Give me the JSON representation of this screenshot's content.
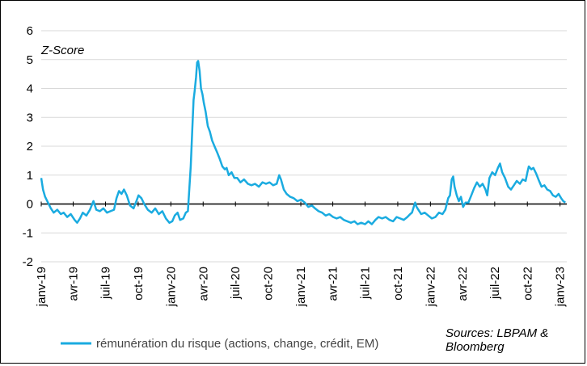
{
  "chart_data": {
    "type": "line",
    "ylabel": "Z-Score",
    "source_note": [
      "Sources: LBPAM &",
      "Bloomberg"
    ],
    "ylim": [
      -2,
      6
    ],
    "y_ticks": [
      "6",
      "5",
      "4",
      "3",
      "2",
      "1",
      "0",
      "-1",
      "-2"
    ],
    "x_ticks": [
      "janv-19",
      "avr-19",
      "juil-19",
      "oct-19",
      "janv-20",
      "avr-20",
      "juil-20",
      "oct-20",
      "janv-21",
      "avr-21",
      "juil-21",
      "oct-21",
      "janv-22",
      "avr-22",
      "juil-22",
      "oct-22",
      "janv-23"
    ],
    "grid": true,
    "series": [
      {
        "name": "rémunération du risque (actions, change, crédit, EM)",
        "color": "#1aabe0",
        "points": [
          [
            "2019-01-01",
            0.9
          ],
          [
            "2019-01-06",
            0.5
          ],
          [
            "2019-01-12",
            0.25
          ],
          [
            "2019-01-20",
            0.05
          ],
          [
            "2019-01-28",
            -0.15
          ],
          [
            "2019-02-05",
            -0.3
          ],
          [
            "2019-02-15",
            -0.2
          ],
          [
            "2019-02-25",
            -0.35
          ],
          [
            "2019-03-05",
            -0.3
          ],
          [
            "2019-03-15",
            -0.45
          ],
          [
            "2019-03-25",
            -0.35
          ],
          [
            "2019-04-05",
            -0.55
          ],
          [
            "2019-04-12",
            -0.65
          ],
          [
            "2019-04-20",
            -0.5
          ],
          [
            "2019-04-28",
            -0.3
          ],
          [
            "2019-05-08",
            -0.4
          ],
          [
            "2019-05-18",
            -0.2
          ],
          [
            "2019-05-28",
            0.1
          ],
          [
            "2019-06-05",
            -0.2
          ],
          [
            "2019-06-15",
            -0.25
          ],
          [
            "2019-06-25",
            -0.15
          ],
          [
            "2019-07-05",
            -0.3
          ],
          [
            "2019-07-15",
            -0.25
          ],
          [
            "2019-07-25",
            -0.2
          ],
          [
            "2019-08-01",
            0.2
          ],
          [
            "2019-08-08",
            0.45
          ],
          [
            "2019-08-15",
            0.35
          ],
          [
            "2019-08-22",
            0.5
          ],
          [
            "2019-08-30",
            0.3
          ],
          [
            "2019-09-08",
            -0.05
          ],
          [
            "2019-09-18",
            -0.15
          ],
          [
            "2019-09-26",
            0.1
          ],
          [
            "2019-10-02",
            0.3
          ],
          [
            "2019-10-10",
            0.2
          ],
          [
            "2019-10-18",
            0.0
          ],
          [
            "2019-10-28",
            -0.2
          ],
          [
            "2019-11-08",
            -0.3
          ],
          [
            "2019-11-18",
            -0.15
          ],
          [
            "2019-11-28",
            -0.35
          ],
          [
            "2019-12-08",
            -0.25
          ],
          [
            "2019-12-18",
            -0.5
          ],
          [
            "2019-12-28",
            -0.65
          ],
          [
            "2020-01-05",
            -0.6
          ],
          [
            "2020-01-12",
            -0.4
          ],
          [
            "2020-01-20",
            -0.3
          ],
          [
            "2020-01-27",
            -0.55
          ],
          [
            "2020-02-05",
            -0.5
          ],
          [
            "2020-02-12",
            -0.3
          ],
          [
            "2020-02-18",
            -0.25
          ],
          [
            "2020-02-22",
            0.5
          ],
          [
            "2020-02-26",
            1.3
          ],
          [
            "2020-03-01",
            2.5
          ],
          [
            "2020-03-05",
            3.6
          ],
          [
            "2020-03-08",
            3.9
          ],
          [
            "2020-03-12",
            4.4
          ],
          [
            "2020-03-15",
            4.9
          ],
          [
            "2020-03-18",
            4.95
          ],
          [
            "2020-03-22",
            4.6
          ],
          [
            "2020-03-26",
            4.0
          ],
          [
            "2020-03-30",
            3.8
          ],
          [
            "2020-04-03",
            3.5
          ],
          [
            "2020-04-08",
            3.2
          ],
          [
            "2020-04-14",
            2.7
          ],
          [
            "2020-04-20",
            2.5
          ],
          [
            "2020-04-26",
            2.2
          ],
          [
            "2020-05-03",
            2.0
          ],
          [
            "2020-05-10",
            1.8
          ],
          [
            "2020-05-18",
            1.55
          ],
          [
            "2020-05-25",
            1.3
          ],
          [
            "2020-06-01",
            1.2
          ],
          [
            "2020-06-06",
            1.25
          ],
          [
            "2020-06-12",
            1.0
          ],
          [
            "2020-06-20",
            1.1
          ],
          [
            "2020-06-28",
            0.9
          ],
          [
            "2020-07-06",
            0.9
          ],
          [
            "2020-07-15",
            0.75
          ],
          [
            "2020-07-25",
            0.85
          ],
          [
            "2020-08-05",
            0.7
          ],
          [
            "2020-08-15",
            0.65
          ],
          [
            "2020-08-25",
            0.7
          ],
          [
            "2020-09-05",
            0.6
          ],
          [
            "2020-09-15",
            0.75
          ],
          [
            "2020-09-25",
            0.7
          ],
          [
            "2020-10-05",
            0.75
          ],
          [
            "2020-10-15",
            0.65
          ],
          [
            "2020-10-25",
            0.7
          ],
          [
            "2020-11-01",
            1.0
          ],
          [
            "2020-11-06",
            0.85
          ],
          [
            "2020-11-14",
            0.5
          ],
          [
            "2020-11-22",
            0.35
          ],
          [
            "2020-12-02",
            0.25
          ],
          [
            "2020-12-12",
            0.2
          ],
          [
            "2020-12-22",
            0.1
          ],
          [
            "2021-01-02",
            0.15
          ],
          [
            "2021-01-12",
            0.05
          ],
          [
            "2021-01-22",
            -0.1
          ],
          [
            "2021-02-01",
            -0.05
          ],
          [
            "2021-02-10",
            -0.15
          ],
          [
            "2021-02-20",
            -0.25
          ],
          [
            "2021-03-02",
            -0.3
          ],
          [
            "2021-03-12",
            -0.4
          ],
          [
            "2021-03-22",
            -0.35
          ],
          [
            "2021-04-02",
            -0.45
          ],
          [
            "2021-04-12",
            -0.5
          ],
          [
            "2021-04-22",
            -0.45
          ],
          [
            "2021-05-02",
            -0.55
          ],
          [
            "2021-05-12",
            -0.6
          ],
          [
            "2021-05-22",
            -0.65
          ],
          [
            "2021-06-01",
            -0.6
          ],
          [
            "2021-06-10",
            -0.7
          ],
          [
            "2021-06-20",
            -0.65
          ],
          [
            "2021-07-01",
            -0.7
          ],
          [
            "2021-07-10",
            -0.6
          ],
          [
            "2021-07-20",
            -0.7
          ],
          [
            "2021-07-30",
            -0.55
          ],
          [
            "2021-08-08",
            -0.45
          ],
          [
            "2021-08-18",
            -0.5
          ],
          [
            "2021-08-28",
            -0.45
          ],
          [
            "2021-09-08",
            -0.55
          ],
          [
            "2021-09-18",
            -0.6
          ],
          [
            "2021-09-28",
            -0.45
          ],
          [
            "2021-10-08",
            -0.5
          ],
          [
            "2021-10-18",
            -0.55
          ],
          [
            "2021-10-28",
            -0.45
          ],
          [
            "2021-11-05",
            -0.35
          ],
          [
            "2021-11-10",
            -0.3
          ],
          [
            "2021-11-15",
            -0.1
          ],
          [
            "2021-11-19",
            0.05
          ],
          [
            "2021-11-23",
            -0.1
          ],
          [
            "2021-11-28",
            -0.2
          ],
          [
            "2021-12-06",
            -0.35
          ],
          [
            "2021-12-16",
            -0.3
          ],
          [
            "2021-12-26",
            -0.4
          ],
          [
            "2022-01-05",
            -0.5
          ],
          [
            "2022-01-15",
            -0.45
          ],
          [
            "2022-01-25",
            -0.3
          ],
          [
            "2022-02-04",
            -0.35
          ],
          [
            "2022-02-12",
            -0.2
          ],
          [
            "2022-02-20",
            0.2
          ],
          [
            "2022-02-25",
            0.3
          ],
          [
            "2022-03-02",
            0.85
          ],
          [
            "2022-03-06",
            0.95
          ],
          [
            "2022-03-10",
            0.6
          ],
          [
            "2022-03-16",
            0.3
          ],
          [
            "2022-03-22",
            0.1
          ],
          [
            "2022-03-28",
            0.25
          ],
          [
            "2022-04-03",
            -0.1
          ],
          [
            "2022-04-10",
            0.05
          ],
          [
            "2022-04-18",
            0.05
          ],
          [
            "2022-04-26",
            0.3
          ],
          [
            "2022-05-04",
            0.55
          ],
          [
            "2022-05-12",
            0.75
          ],
          [
            "2022-05-20",
            0.6
          ],
          [
            "2022-05-28",
            0.7
          ],
          [
            "2022-06-05",
            0.5
          ],
          [
            "2022-06-10",
            0.3
          ],
          [
            "2022-06-16",
            0.9
          ],
          [
            "2022-06-24",
            1.1
          ],
          [
            "2022-07-02",
            1.0
          ],
          [
            "2022-07-10",
            1.25
          ],
          [
            "2022-07-16",
            1.4
          ],
          [
            "2022-07-22",
            1.1
          ],
          [
            "2022-07-30",
            0.9
          ],
          [
            "2022-08-08",
            0.6
          ],
          [
            "2022-08-16",
            0.5
          ],
          [
            "2022-08-24",
            0.65
          ],
          [
            "2022-09-01",
            0.8
          ],
          [
            "2022-09-10",
            0.7
          ],
          [
            "2022-09-18",
            0.85
          ],
          [
            "2022-09-26",
            0.8
          ],
          [
            "2022-10-01",
            1.1
          ],
          [
            "2022-10-05",
            1.3
          ],
          [
            "2022-10-12",
            1.2
          ],
          [
            "2022-10-18",
            1.25
          ],
          [
            "2022-10-26",
            1.05
          ],
          [
            "2022-11-03",
            0.8
          ],
          [
            "2022-11-10",
            0.6
          ],
          [
            "2022-11-18",
            0.65
          ],
          [
            "2022-11-26",
            0.5
          ],
          [
            "2022-12-04",
            0.45
          ],
          [
            "2022-12-12",
            0.3
          ],
          [
            "2022-12-20",
            0.25
          ],
          [
            "2022-12-28",
            0.35
          ],
          [
            "2023-01-04",
            0.2
          ],
          [
            "2023-01-10",
            0.1
          ],
          [
            "2023-01-16",
            0.05
          ]
        ]
      }
    ]
  }
}
